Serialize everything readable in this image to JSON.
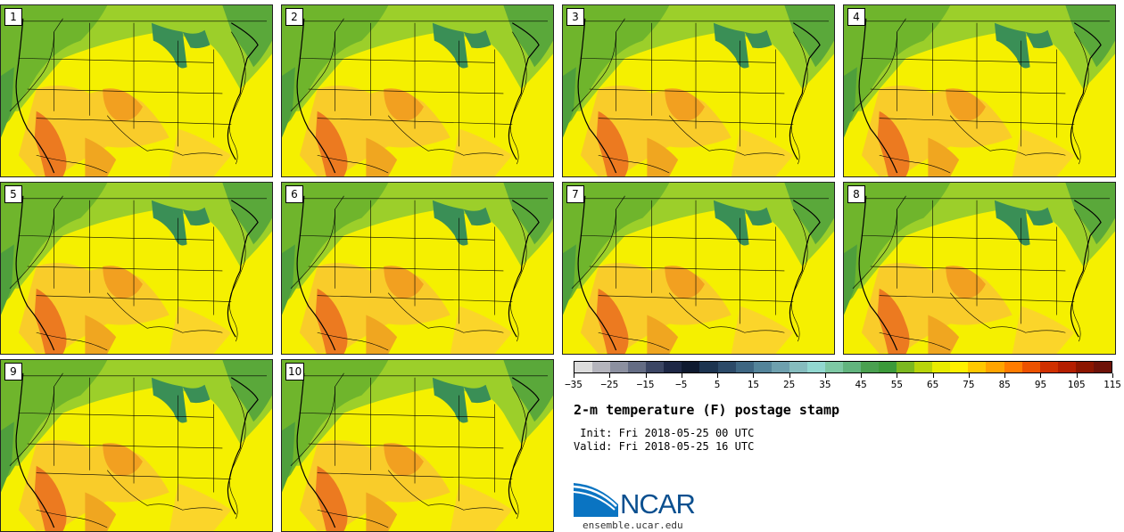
{
  "panels": [
    {
      "label": "1"
    },
    {
      "label": "2"
    },
    {
      "label": "3"
    },
    {
      "label": "4"
    },
    {
      "label": "5"
    },
    {
      "label": "6"
    },
    {
      "label": "7"
    },
    {
      "label": "8"
    },
    {
      "label": "9"
    },
    {
      "label": "10"
    }
  ],
  "colorbar": {
    "colors": [
      "#dcdcdc",
      "#b4b4bc",
      "#8c90a0",
      "#646c84",
      "#3c4664",
      "#1e2846",
      "#0f1a30",
      "#1c3450",
      "#2c4a68",
      "#3e6682",
      "#54849a",
      "#6ea0ae",
      "#86bcbe",
      "#92d8d0",
      "#7ec8a4",
      "#62b47e",
      "#4aa050",
      "#3c9a3a",
      "#7cb820",
      "#b8d40a",
      "#e8ec00",
      "#fff000",
      "#ffc800",
      "#ffa400",
      "#ff7c00",
      "#ec5200",
      "#d03000",
      "#b41e00",
      "#8c1600",
      "#6e1208"
    ],
    "tick_labels": [
      "−35",
      "−25",
      "−15",
      "−5",
      "5",
      "15",
      "25",
      "35",
      "45",
      "55",
      "65",
      "75",
      "85",
      "95",
      "105",
      "115"
    ]
  },
  "title": "2-m temperature (F) postage stamp",
  "init": " Init: Fri 2018-05-25 00 UTC",
  "valid": "Valid: Fri 2018-05-25 16 UTC",
  "logo_text": "NCAR",
  "site": "ensemble.ucar.edu"
}
